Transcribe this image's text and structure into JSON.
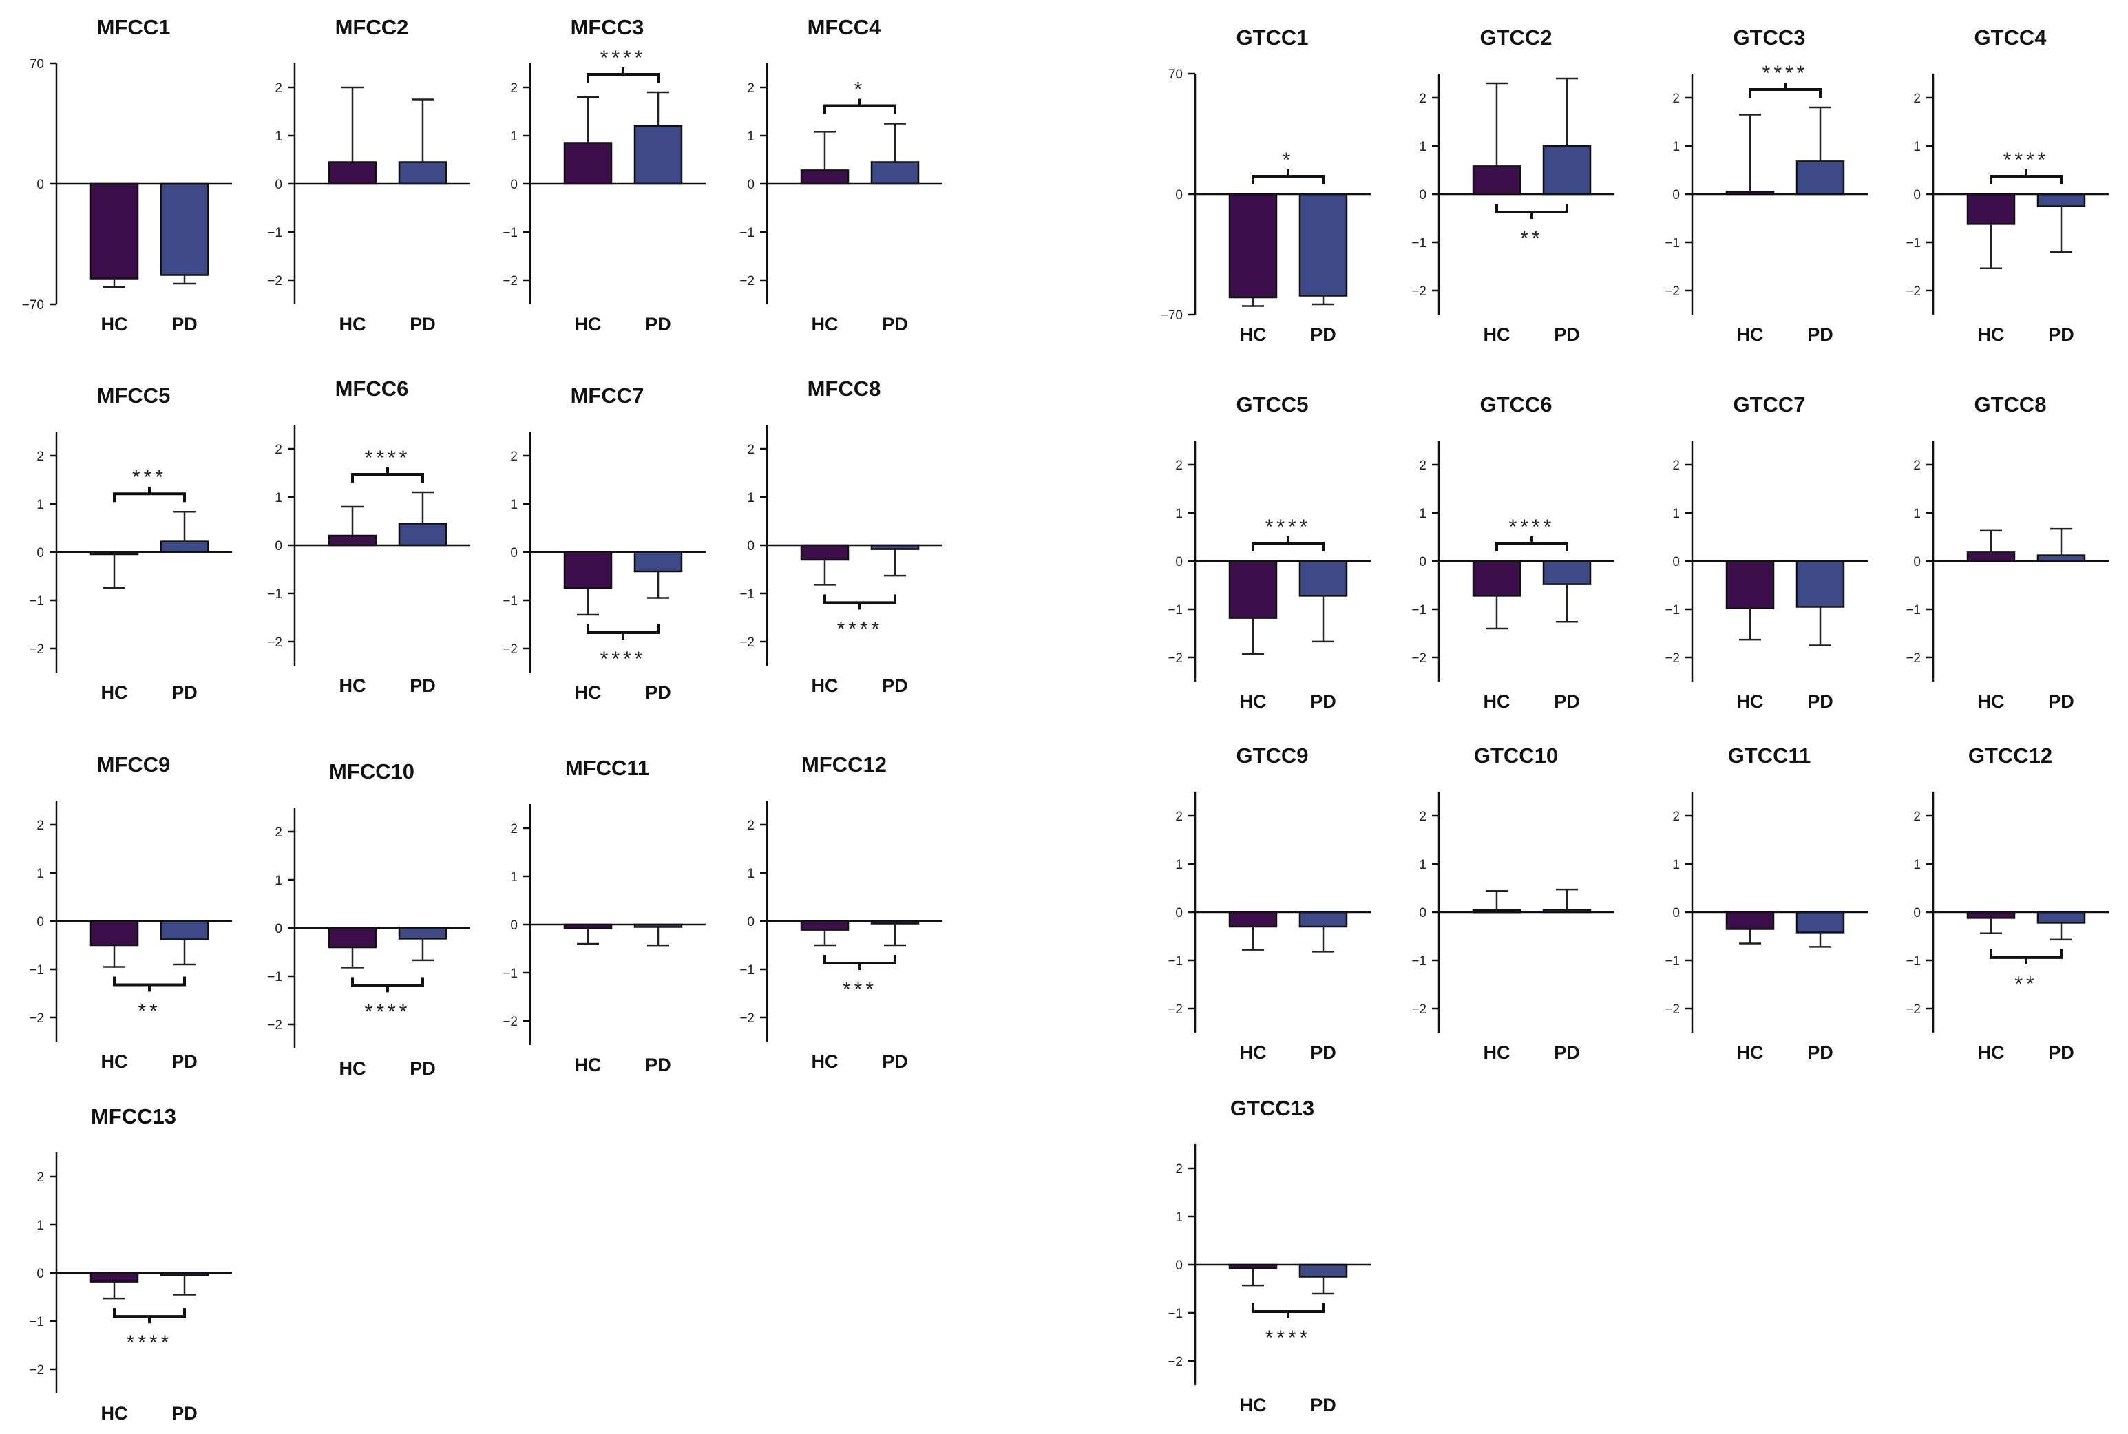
{
  "figure": {
    "colors": {
      "HC": "#3d0f4a",
      "PD": "#3e4a88",
      "axis": "#111111"
    }
  },
  "chart_data": [
    {
      "type": "bar",
      "title": "MFCC1",
      "categories": [
        "HC",
        "PD"
      ],
      "values": [
        -55,
        -53
      ],
      "errors": [
        5,
        5
      ],
      "ylim": [
        -70,
        70
      ],
      "yticks": [
        -70,
        0,
        70
      ],
      "significance": {
        "label": "",
        "position": "none"
      }
    },
    {
      "type": "bar",
      "title": "MFCC2",
      "categories": [
        "HC",
        "PD"
      ],
      "values": [
        0.45,
        0.45
      ],
      "errors": [
        1.55,
        1.3
      ],
      "ylim": [
        -2.5,
        2.5
      ],
      "yticks": [
        -2,
        -1,
        0,
        1,
        2
      ],
      "significance": {
        "label": "",
        "position": "none"
      }
    },
    {
      "type": "bar",
      "title": "MFCC3",
      "categories": [
        "HC",
        "PD"
      ],
      "values": [
        0.85,
        1.2
      ],
      "errors": [
        0.95,
        0.7
      ],
      "ylim": [
        -2.5,
        2.5
      ],
      "yticks": [
        -2,
        -1,
        0,
        1,
        2
      ],
      "significance": {
        "label": "****",
        "position": "above"
      }
    },
    {
      "type": "bar",
      "title": "MFCC4",
      "categories": [
        "HC",
        "PD"
      ],
      "values": [
        0.28,
        0.45
      ],
      "errors": [
        0.8,
        0.8
      ],
      "ylim": [
        -2.5,
        2.5
      ],
      "yticks": [
        -2,
        -1,
        0,
        1,
        2
      ],
      "significance": {
        "label": "*",
        "position": "above"
      }
    },
    {
      "type": "bar",
      "title": "MFCC5",
      "categories": [
        "HC",
        "PD"
      ],
      "values": [
        -0.02,
        0.22
      ],
      "errors": [
        0.72,
        0.62
      ],
      "ylim": [
        -2.5,
        2.5
      ],
      "yticks": [
        -2,
        -1,
        0,
        1,
        2
      ],
      "significance": {
        "label": "***",
        "position": "above"
      }
    },
    {
      "type": "bar",
      "title": "MFCC6",
      "categories": [
        "HC",
        "PD"
      ],
      "values": [
        0.2,
        0.45
      ],
      "errors": [
        0.6,
        0.65
      ],
      "ylim": [
        -2.5,
        2.5
      ],
      "yticks": [
        -2,
        -1,
        0,
        1,
        2
      ],
      "significance": {
        "label": "****",
        "position": "above"
      }
    },
    {
      "type": "bar",
      "title": "MFCC7",
      "categories": [
        "HC",
        "PD"
      ],
      "values": [
        -0.75,
        -0.4
      ],
      "errors": [
        0.55,
        0.55
      ],
      "ylim": [
        -2.5,
        2.5
      ],
      "yticks": [
        -2,
        -1,
        0,
        1,
        2
      ],
      "significance": {
        "label": "****",
        "position": "below"
      }
    },
    {
      "type": "bar",
      "title": "MFCC8",
      "categories": [
        "HC",
        "PD"
      ],
      "values": [
        -0.3,
        -0.08
      ],
      "errors": [
        0.52,
        0.55
      ],
      "ylim": [
        -2.5,
        2.5
      ],
      "yticks": [
        -2,
        -1,
        0,
        1,
        2
      ],
      "significance": {
        "label": "****",
        "position": "below"
      }
    },
    {
      "type": "bar",
      "title": "MFCC9",
      "categories": [
        "HC",
        "PD"
      ],
      "values": [
        -0.5,
        -0.38
      ],
      "errors": [
        0.45,
        0.52
      ],
      "ylim": [
        -2.5,
        2.5
      ],
      "yticks": [
        -2,
        -1,
        0,
        1,
        2
      ],
      "significance": {
        "label": "**",
        "position": "below"
      }
    },
    {
      "type": "bar",
      "title": "MFCC10",
      "categories": [
        "HC",
        "PD"
      ],
      "values": [
        -0.4,
        -0.22
      ],
      "errors": [
        0.42,
        0.45
      ],
      "ylim": [
        -2.5,
        2.5
      ],
      "yticks": [
        -2,
        -1,
        0,
        1,
        2
      ],
      "significance": {
        "label": "****",
        "position": "below"
      }
    },
    {
      "type": "bar",
      "title": "MFCC11",
      "categories": [
        "HC",
        "PD"
      ],
      "values": [
        -0.08,
        -0.05
      ],
      "errors": [
        0.32,
        0.38
      ],
      "ylim": [
        -2.5,
        2.5
      ],
      "yticks": [
        -2,
        -1,
        0,
        1,
        2
      ],
      "significance": {
        "label": "",
        "position": "none"
      }
    },
    {
      "type": "bar",
      "title": "MFCC12",
      "categories": [
        "HC",
        "PD"
      ],
      "values": [
        -0.18,
        -0.05
      ],
      "errors": [
        0.32,
        0.45
      ],
      "ylim": [
        -2.5,
        2.5
      ],
      "yticks": [
        -2,
        -1,
        0,
        1,
        2
      ],
      "significance": {
        "label": "***",
        "position": "below"
      }
    },
    {
      "type": "bar",
      "title": "MFCC13",
      "categories": [
        "HC",
        "PD"
      ],
      "values": [
        -0.18,
        -0.05
      ],
      "errors": [
        0.35,
        0.4
      ],
      "ylim": [
        -2.5,
        2.5
      ],
      "yticks": [
        -2,
        -1,
        0,
        1,
        2
      ],
      "significance": {
        "label": "****",
        "position": "below"
      }
    },
    {
      "type": "bar",
      "title": "GTCC1",
      "categories": [
        "HC",
        "PD"
      ],
      "values": [
        -60,
        -59
      ],
      "errors": [
        5,
        5
      ],
      "ylim": [
        -70,
        70
      ],
      "yticks": [
        -70,
        0,
        70
      ],
      "significance": {
        "label": "*",
        "position": "above"
      }
    },
    {
      "type": "bar",
      "title": "GTCC2",
      "categories": [
        "HC",
        "PD"
      ],
      "values": [
        0.58,
        1.0
      ],
      "errors": [
        1.72,
        1.4
      ],
      "ylim": [
        -2.5,
        2.5
      ],
      "yticks": [
        -2,
        -1,
        0,
        1,
        2
      ],
      "significance": {
        "label": "**",
        "position": "below"
      }
    },
    {
      "type": "bar",
      "title": "GTCC3",
      "categories": [
        "HC",
        "PD"
      ],
      "values": [
        0.05,
        0.68
      ],
      "errors": [
        1.6,
        1.12
      ],
      "ylim": [
        -2.5,
        2.5
      ],
      "yticks": [
        -2,
        -1,
        0,
        1,
        2
      ],
      "significance": {
        "label": "****",
        "position": "above"
      }
    },
    {
      "type": "bar",
      "title": "GTCC4",
      "categories": [
        "HC",
        "PD"
      ],
      "values": [
        -0.62,
        -0.25
      ],
      "errors": [
        0.92,
        0.95
      ],
      "ylim": [
        -2.5,
        2.5
      ],
      "yticks": [
        -2,
        -1,
        0,
        1,
        2
      ],
      "significance": {
        "label": "****",
        "position": "above"
      }
    },
    {
      "type": "bar",
      "title": "GTCC5",
      "categories": [
        "HC",
        "PD"
      ],
      "values": [
        -1.18,
        -0.72
      ],
      "errors": [
        0.75,
        0.95
      ],
      "ylim": [
        -2.5,
        2.5
      ],
      "yticks": [
        -2,
        -1,
        0,
        1,
        2
      ],
      "significance": {
        "label": "****",
        "position": "above"
      }
    },
    {
      "type": "bar",
      "title": "GTCC6",
      "categories": [
        "HC",
        "PD"
      ],
      "values": [
        -0.72,
        -0.48
      ],
      "errors": [
        0.68,
        0.78
      ],
      "ylim": [
        -2.5,
        2.5
      ],
      "yticks": [
        -2,
        -1,
        0,
        1,
        2
      ],
      "significance": {
        "label": "****",
        "position": "above"
      }
    },
    {
      "type": "bar",
      "title": "GTCC7",
      "categories": [
        "HC",
        "PD"
      ],
      "values": [
        -0.98,
        -0.95
      ],
      "errors": [
        0.65,
        0.8
      ],
      "ylim": [
        -2.5,
        2.5
      ],
      "yticks": [
        -2,
        -1,
        0,
        1,
        2
      ],
      "significance": {
        "label": "",
        "position": "none"
      }
    },
    {
      "type": "bar",
      "title": "GTCC8",
      "categories": [
        "HC",
        "PD"
      ],
      "values": [
        0.18,
        0.12
      ],
      "errors": [
        0.45,
        0.55
      ],
      "ylim": [
        -2.5,
        2.5
      ],
      "yticks": [
        -2,
        -1,
        0,
        1,
        2
      ],
      "significance": {
        "label": "",
        "position": "none"
      }
    },
    {
      "type": "bar",
      "title": "GTCC9",
      "categories": [
        "HC",
        "PD"
      ],
      "values": [
        -0.3,
        -0.3
      ],
      "errors": [
        0.48,
        0.52
      ],
      "ylim": [
        -2.5,
        2.5
      ],
      "yticks": [
        -2,
        -1,
        0,
        1,
        2
      ],
      "significance": {
        "label": "",
        "position": "none"
      }
    },
    {
      "type": "bar",
      "title": "GTCC10",
      "categories": [
        "HC",
        "PD"
      ],
      "values": [
        0.04,
        0.05
      ],
      "errors": [
        0.4,
        0.42
      ],
      "ylim": [
        -2.5,
        2.5
      ],
      "yticks": [
        -2,
        -1,
        0,
        1,
        2
      ],
      "significance": {
        "label": "",
        "position": "none"
      }
    },
    {
      "type": "bar",
      "title": "GTCC11",
      "categories": [
        "HC",
        "PD"
      ],
      "values": [
        -0.35,
        -0.42
      ],
      "errors": [
        0.3,
        0.3
      ],
      "ylim": [
        -2.5,
        2.5
      ],
      "yticks": [
        -2,
        -1,
        0,
        1,
        2
      ],
      "significance": {
        "label": "",
        "position": "none"
      }
    },
    {
      "type": "bar",
      "title": "GTCC12",
      "categories": [
        "HC",
        "PD"
      ],
      "values": [
        -0.12,
        -0.22
      ],
      "errors": [
        0.32,
        0.35
      ],
      "ylim": [
        -2.5,
        2.5
      ],
      "yticks": [
        -2,
        -1,
        0,
        1,
        2
      ],
      "significance": {
        "label": "**",
        "position": "below"
      }
    },
    {
      "type": "bar",
      "title": "GTCC13",
      "categories": [
        "HC",
        "PD"
      ],
      "values": [
        -0.08,
        -0.25
      ],
      "errors": [
        0.35,
        0.35
      ],
      "ylim": [
        -2.5,
        2.5
      ],
      "yticks": [
        -2,
        -1,
        0,
        1,
        2
      ],
      "significance": {
        "label": "****",
        "position": "below"
      }
    }
  ]
}
